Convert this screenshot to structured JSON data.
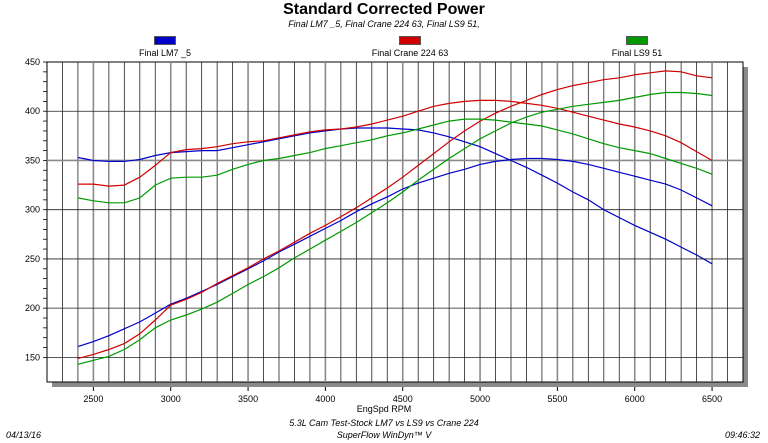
{
  "chart_data": {
    "type": "line",
    "title": "Standard Corrected Power",
    "subtitle": "Final LM7 _5, Final Crane 224 63, Final LS9 51,",
    "xlabel": "EngSpd RPM",
    "ylabel": "",
    "xlim": [
      2200,
      6700
    ],
    "ylim": [
      125,
      450
    ],
    "x_ticks": [
      2500,
      3000,
      3500,
      4000,
      4500,
      5000,
      5500,
      6000,
      6500
    ],
    "y_ticks": [
      150,
      200,
      250,
      300,
      350,
      400,
      450
    ],
    "grid": true,
    "legend_position": "top",
    "x": [
      2400,
      2500,
      2600,
      2700,
      2800,
      2900,
      3000,
      3100,
      3200,
      3300,
      3400,
      3500,
      3600,
      3700,
      3800,
      3900,
      4000,
      4100,
      4200,
      4300,
      4400,
      4500,
      4600,
      4700,
      4800,
      4900,
      5000,
      5100,
      5200,
      5300,
      5400,
      5500,
      5600,
      5700,
      5800,
      5900,
      6000,
      6100,
      6200,
      6300,
      6400,
      6500
    ],
    "series": [
      {
        "name": "Final LM7 _5",
        "color": "#0000c8",
        "curves": [
          [
            353,
            350,
            349,
            349,
            351,
            355,
            358,
            359,
            360,
            360,
            363,
            366,
            369,
            372,
            375,
            378,
            380,
            382,
            383,
            383,
            383,
            382,
            381,
            378,
            374,
            369,
            364,
            357,
            350,
            343,
            335,
            327,
            318,
            310,
            300,
            292,
            284,
            277,
            270,
            262,
            254,
            245
          ],
          [
            161,
            166,
            172,
            179,
            186,
            195,
            204,
            210,
            217,
            224,
            232,
            240,
            248,
            257,
            265,
            273,
            281,
            289,
            298,
            306,
            313,
            321,
            327,
            332,
            337,
            341,
            346,
            349,
            351,
            352,
            352,
            351,
            349,
            346,
            342,
            338,
            334,
            330,
            326,
            320,
            312,
            304
          ]
        ]
      },
      {
        "name": "Final Crane 224 63",
        "color": "#d00000",
        "curves": [
          [
            326,
            326,
            324,
            325,
            333,
            345,
            358,
            361,
            362,
            364,
            367,
            369,
            370,
            373,
            376,
            379,
            381,
            382,
            384,
            387,
            391,
            395,
            400,
            405,
            408,
            410,
            411,
            411,
            410,
            408,
            406,
            403,
            399,
            395,
            391,
            387,
            384,
            380,
            375,
            368,
            359,
            350
          ],
          [
            149,
            153,
            158,
            164,
            174,
            188,
            203,
            209,
            216,
            225,
            233,
            241,
            250,
            258,
            267,
            276,
            284,
            293,
            302,
            312,
            322,
            333,
            345,
            357,
            369,
            380,
            390,
            398,
            405,
            411,
            417,
            422,
            426,
            429,
            432,
            434,
            437,
            439,
            441,
            440,
            436,
            434
          ]
        ]
      },
      {
        "name": "Final LS9 51",
        "color": "#009a00",
        "curves": [
          [
            312,
            309,
            307,
            307,
            312,
            325,
            332,
            333,
            333,
            335,
            341,
            346,
            350,
            352,
            355,
            358,
            362,
            365,
            368,
            371,
            375,
            378,
            382,
            386,
            390,
            392,
            392,
            391,
            389,
            387,
            385,
            381,
            377,
            372,
            367,
            363,
            360,
            357,
            352,
            347,
            342,
            336
          ],
          [
            143,
            147,
            151,
            158,
            168,
            180,
            188,
            193,
            199,
            206,
            215,
            224,
            232,
            241,
            251,
            260,
            269,
            278,
            287,
            297,
            307,
            318,
            330,
            341,
            352,
            362,
            372,
            380,
            388,
            394,
            399,
            402,
            405,
            407,
            409,
            411,
            414,
            417,
            419,
            419,
            418,
            416
          ]
        ]
      }
    ]
  },
  "footer": {
    "test_name": "5.3L Cam Test-Stock LM7 vs LS9 vs Crane 224",
    "software": "SuperFlow WinDyn™ V",
    "date": "04/13/16",
    "time": "09:46:32"
  }
}
